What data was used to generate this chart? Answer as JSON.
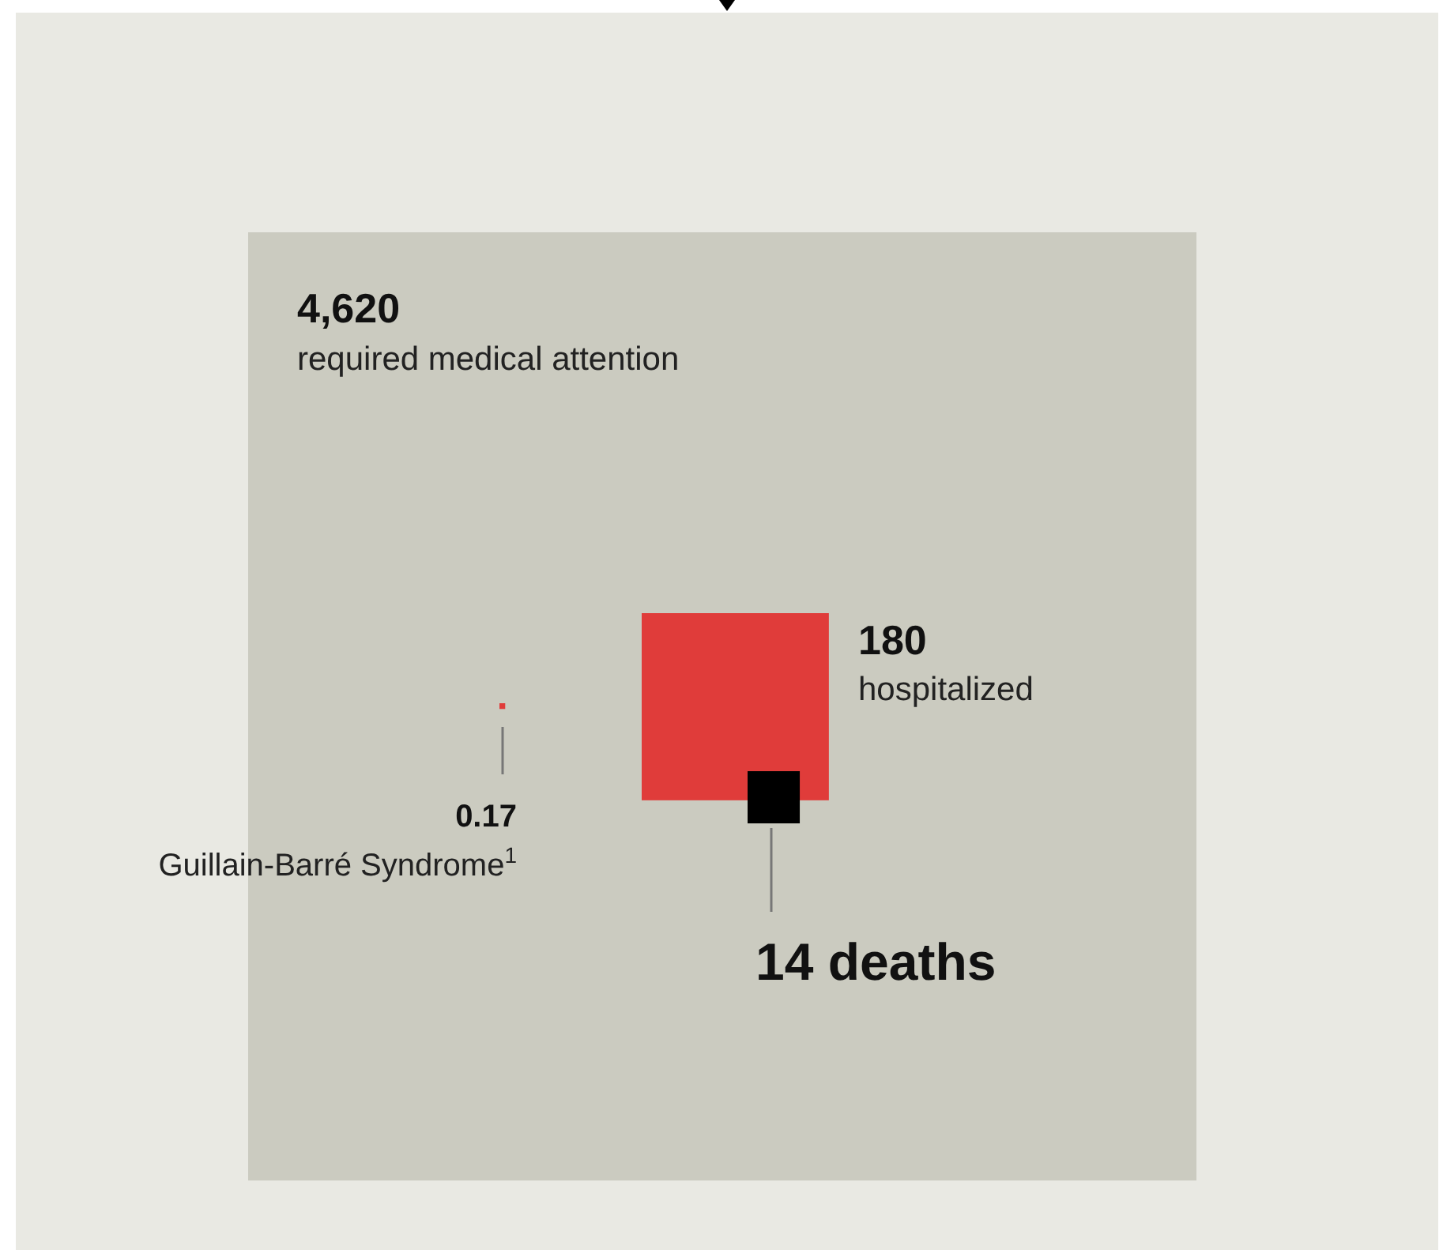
{
  "chart_data": {
    "type": "other",
    "categories": [
      "required medical attention",
      "hospitalized",
      "deaths",
      "Guillain-Barré Syndrome$^{1}$"
    ],
    "values": [
      4620,
      180,
      14,
      0.17
    ],
    "value_labels": [
      "4,620",
      "180",
      "14",
      "0.17"
    ],
    "colors": [
      "#cbcbc0",
      "#e03c3a",
      "#000000",
      "#e03c3a"
    ]
  }
}
